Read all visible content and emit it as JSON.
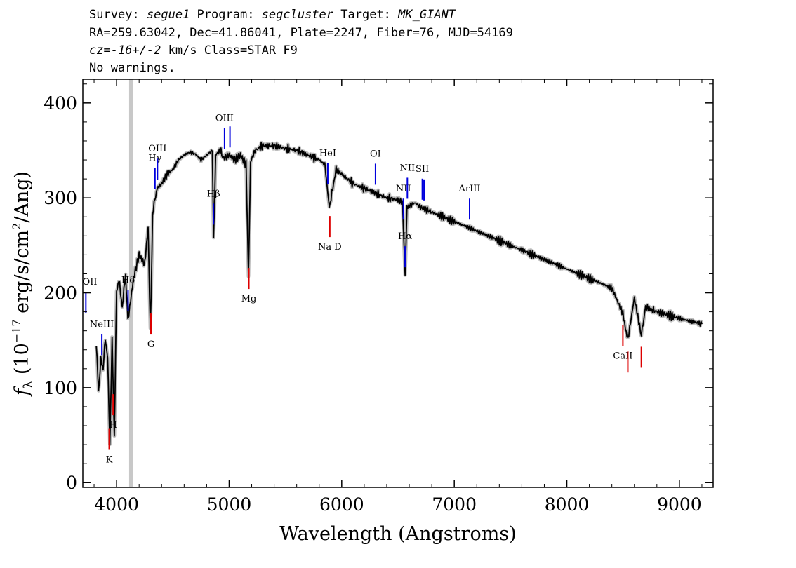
{
  "header": {
    "line1_a": "Survey: ",
    "survey": "segue1",
    "line1_b": " Program: ",
    "program": "segcluster",
    "line1_c": " Target: ",
    "target": "MK_GIANT",
    "line2": "RA=259.63042, Dec=41.86041, Plate=2247, Fiber=76, MJD=54169",
    "line3_cz": "cz=",
    "line3_val": "-16+/-2",
    "line3_rest": " km/s Class=STAR F9",
    "line4": "No warnings."
  },
  "chart_data": {
    "type": "line",
    "xlabel": "Wavelength (Angstroms)",
    "ylabel_main": "f",
    "ylabel_sub": "λ",
    "ylabel_rest1": " (10",
    "ylabel_exp1": "−17",
    "ylabel_rest2": " erg/s/cm",
    "ylabel_exp2": "2",
    "ylabel_rest3": "/Ang)",
    "xlim": [
      3700,
      9300
    ],
    "ylim": [
      -5,
      425
    ],
    "xticks": [
      4000,
      5000,
      6000,
      7000,
      8000,
      9000
    ],
    "yticks": [
      0,
      100,
      200,
      300,
      400
    ],
    "series": [
      {
        "x": [
          3820,
          3840,
          3860,
          3880,
          3900,
          3920,
          3940,
          3960,
          3980,
          4000,
          4020,
          4050,
          4080,
          4100,
          4150,
          4200,
          4250,
          4280,
          4300,
          4320,
          4340,
          4360,
          4400,
          4450,
          4500,
          4550,
          4600,
          4650,
          4700,
          4750,
          4800,
          4850,
          4862,
          4880,
          4920,
          4950,
          5000,
          5050,
          5100,
          5150,
          5172,
          5190,
          5230,
          5300,
          5400,
          5500,
          5600,
          5700,
          5800,
          5850,
          5890,
          5950,
          6000,
          6100,
          6200,
          6300,
          6400,
          6500,
          6540,
          6563,
          6580,
          6650,
          6700,
          6800,
          7000,
          7200,
          7400,
          7600,
          7800,
          8000,
          8200,
          8400,
          8498,
          8542,
          8600,
          8662,
          8700,
          8800,
          9000,
          9200
        ],
        "y": [
          145,
          95,
          130,
          120,
          150,
          135,
          40,
          150,
          50,
          200,
          215,
          185,
          220,
          170,
          215,
          240,
          230,
          270,
          160,
          280,
          300,
          310,
          315,
          325,
          330,
          340,
          345,
          348,
          346,
          340,
          345,
          350,
          255,
          345,
          350,
          342,
          345,
          340,
          345,
          335,
          218,
          338,
          350,
          355,
          355,
          352,
          350,
          345,
          340,
          335,
          290,
          330,
          325,
          315,
          310,
          305,
          300,
          298,
          295,
          218,
          290,
          295,
          290,
          285,
          275,
          265,
          255,
          245,
          235,
          225,
          215,
          205,
          178,
          150,
          195,
          155,
          185,
          180,
          173,
          167
        ]
      }
    ],
    "band_x": 4130,
    "lines": [
      {
        "label": "OII",
        "x": 3727,
        "color": "#0000dd",
        "position": "above"
      },
      {
        "label": "NeIII",
        "x": 3869,
        "color": "#0000dd",
        "position": "above"
      },
      {
        "label": "Hδ",
        "x": 4102,
        "color": "#0000dd",
        "position": "above"
      },
      {
        "label": "Hγ",
        "x": 4341,
        "color": "#0000dd",
        "position": "above"
      },
      {
        "label": "OIII",
        "x": 4363,
        "color": "#0000dd",
        "position": "above"
      },
      {
        "label": "Hβ",
        "x": 4861,
        "color": "#0000dd",
        "position": "above"
      },
      {
        "label": "OIII",
        "x": 4959,
        "color": "#0000dd",
        "position": "above"
      },
      {
        "label": "",
        "x": 5007,
        "color": "#0000dd",
        "position": "above"
      },
      {
        "label": "HeI",
        "x": 5876,
        "color": "#0000dd",
        "position": "above"
      },
      {
        "label": "OI",
        "x": 6300,
        "color": "#0000dd",
        "position": "above"
      },
      {
        "label": "NII",
        "x": 6548,
        "color": "#0000dd",
        "position": "above"
      },
      {
        "label": "Hα",
        "x": 6563,
        "color": "#0000dd",
        "position": "above"
      },
      {
        "label": "NII",
        "x": 6583,
        "color": "#0000dd",
        "position": "above"
      },
      {
        "label": "SII",
        "x": 6716,
        "color": "#0000dd",
        "position": "above"
      },
      {
        "label": "",
        "x": 6731,
        "color": "#0000dd",
        "position": "above"
      },
      {
        "label": "ArIII",
        "x": 7136,
        "color": "#0000dd",
        "position": "above"
      },
      {
        "label": "K",
        "x": 3934,
        "color": "#dd0000",
        "position": "below"
      },
      {
        "label": "H",
        "x": 3969,
        "color": "#dd0000",
        "position": "below"
      },
      {
        "label": "G",
        "x": 4305,
        "color": "#dd0000",
        "position": "below"
      },
      {
        "label": "Mg",
        "x": 5175,
        "color": "#dd0000",
        "position": "below"
      },
      {
        "label": "Na D",
        "x": 5894,
        "color": "#dd0000",
        "position": "below"
      },
      {
        "label": "CaII",
        "x": 8498,
        "color": "#dd0000",
        "position": "below"
      },
      {
        "label": "",
        "x": 8542,
        "color": "#dd0000",
        "position": "below"
      },
      {
        "label": "",
        "x": 8662,
        "color": "#dd0000",
        "position": "below"
      }
    ]
  }
}
